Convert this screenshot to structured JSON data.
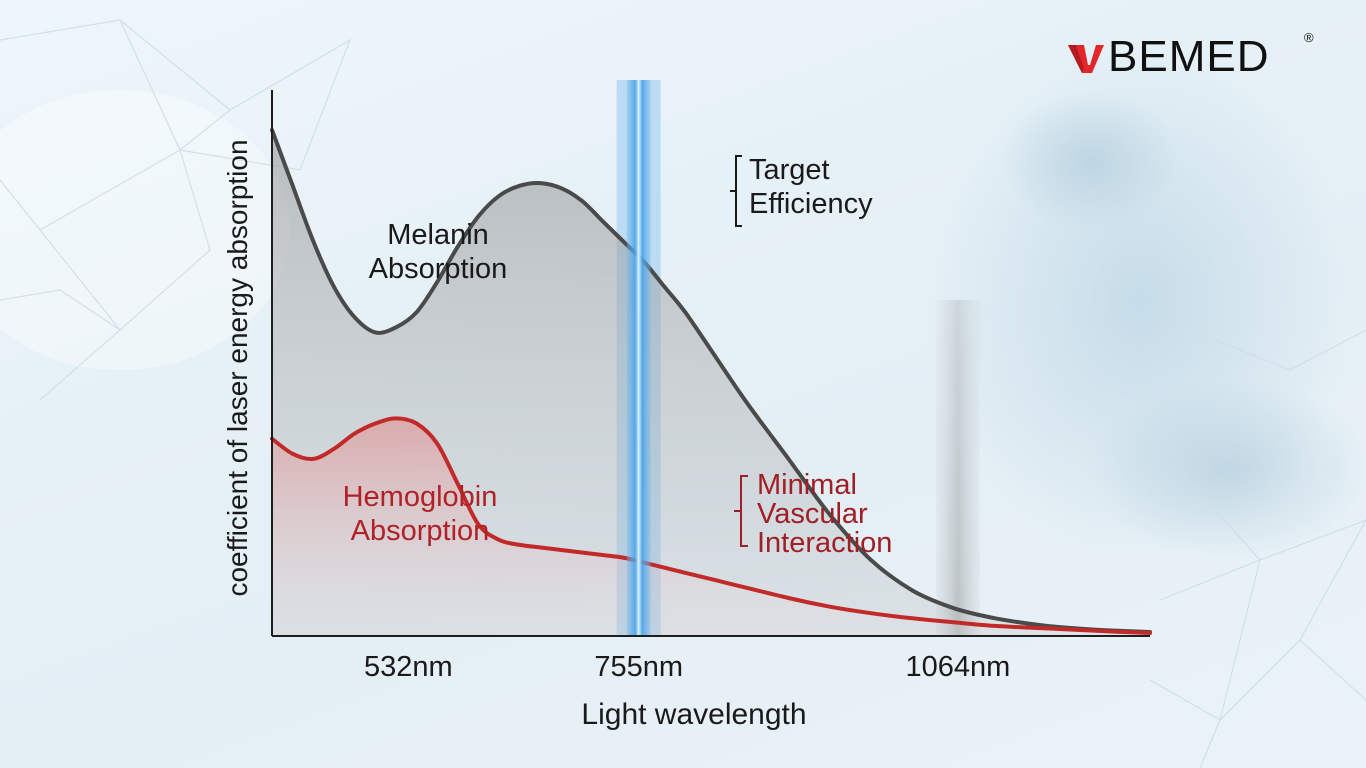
{
  "brand": {
    "name": "BEMED",
    "registered": "®",
    "logo_mark": "red-v-mark-icon",
    "logo_color": "#e3262c"
  },
  "chart_data": {
    "type": "line",
    "title": "",
    "xlabel": "Light wavelength",
    "ylabel": "coefficient of laser energy absorption",
    "x_ticks": [
      {
        "value": 532,
        "label": "532nm"
      },
      {
        "value": 755,
        "label": "755nm"
      },
      {
        "value": 1064,
        "label": "1064nm"
      }
    ],
    "xlim": [
      400,
      1250
    ],
    "ylim": [
      0,
      1
    ],
    "y_ticks_shown": false,
    "grid": false,
    "series": [
      {
        "name": "Melanin Absorption",
        "label_lines": [
          "Melanin",
          "Absorption"
        ],
        "color": "#4a4a4a",
        "x": [
          400,
          420,
          440,
          460,
          480,
          500,
          520,
          540,
          560,
          580,
          600,
          620,
          640,
          660,
          680,
          700,
          720,
          740,
          760,
          780,
          800,
          830,
          860,
          900,
          940,
          980,
          1020,
          1060,
          1100,
          1150,
          1200,
          1250
        ],
        "y": [
          1.0,
          0.89,
          0.78,
          0.69,
          0.63,
          0.6,
          0.61,
          0.64,
          0.7,
          0.77,
          0.83,
          0.87,
          0.89,
          0.895,
          0.885,
          0.86,
          0.82,
          0.78,
          0.74,
          0.69,
          0.64,
          0.55,
          0.46,
          0.35,
          0.24,
          0.15,
          0.09,
          0.055,
          0.035,
          0.02,
          0.012,
          0.008
        ]
      },
      {
        "name": "Hemoglobin Absorption",
        "label_lines": [
          "Hemoglobin",
          "Absorption"
        ],
        "color": "#c22a2a",
        "x": [
          400,
          420,
          440,
          460,
          480,
          500,
          520,
          540,
          560,
          580,
          600,
          620,
          640,
          660,
          680,
          700,
          720,
          740,
          760,
          780,
          800,
          830,
          860,
          900,
          940,
          980,
          1020,
          1060,
          1100,
          1150,
          1200,
          1250
        ],
        "y": [
          0.39,
          0.36,
          0.35,
          0.37,
          0.4,
          0.42,
          0.43,
          0.42,
          0.38,
          0.3,
          0.22,
          0.19,
          0.18,
          0.175,
          0.17,
          0.165,
          0.16,
          0.155,
          0.145,
          0.135,
          0.125,
          0.11,
          0.095,
          0.075,
          0.058,
          0.045,
          0.035,
          0.027,
          0.02,
          0.015,
          0.01,
          0.006
        ]
      }
    ],
    "highlight_bands": [
      {
        "name": "755nm",
        "x": 755,
        "color": "#3d9be0"
      },
      {
        "name": "1064nm",
        "x": 1064,
        "color": "#9c9c9c"
      }
    ],
    "annotations": [
      {
        "name": "target-efficiency",
        "lines": [
          "Target",
          "Efficiency"
        ],
        "color": "#1a1a1a"
      },
      {
        "name": "minimal-vascular-interaction",
        "lines": [
          "Minimal",
          "Vascular",
          "Interaction"
        ],
        "color": "#a01f24"
      }
    ]
  }
}
